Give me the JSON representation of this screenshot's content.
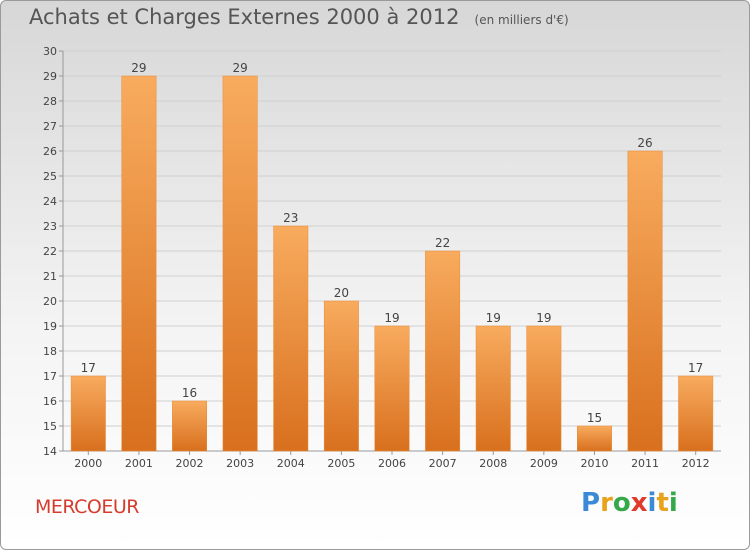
{
  "title": "Achats et Charges Externes 2000 à 2012",
  "subtitle": "(en milliers d'€)",
  "commune": "MERCOEUR",
  "logo": {
    "text": "Proxiti",
    "letters": [
      "P",
      "r",
      "o",
      "x",
      "i",
      "t",
      "i"
    ],
    "colors": [
      "#3a8ad8",
      "#e8a31b",
      "#35a94a",
      "#e23a2a",
      "#3a8ad8",
      "#e8a31b",
      "#35a94a"
    ]
  },
  "chart_data": {
    "type": "bar",
    "categories": [
      "2000",
      "2001",
      "2002",
      "2003",
      "2004",
      "2005",
      "2006",
      "2007",
      "2008",
      "2009",
      "2010",
      "2011",
      "2012"
    ],
    "values": [
      17,
      29,
      16,
      29,
      23,
      20,
      19,
      22,
      19,
      19,
      15,
      26,
      17
    ],
    "ylim": [
      14,
      30
    ],
    "yticks": [
      14,
      15,
      16,
      17,
      18,
      19,
      20,
      21,
      22,
      23,
      24,
      25,
      26,
      27,
      28,
      29,
      30
    ],
    "grid": true,
    "bar_color": "#f0943f"
  }
}
